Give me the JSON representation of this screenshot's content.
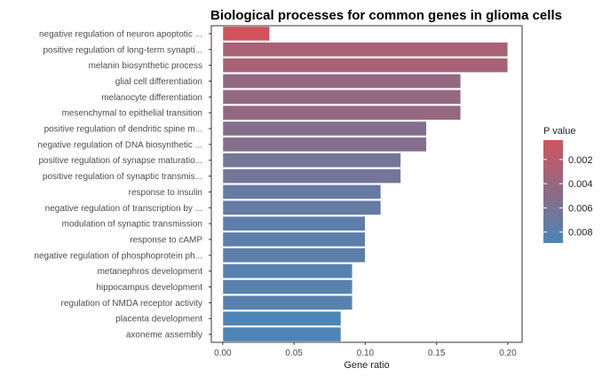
{
  "chart_data": {
    "type": "bar",
    "orientation": "horizontal",
    "title": "Biological processes for common genes in glioma cells",
    "xlabel": "Gene ratio",
    "ylabel": "",
    "xlim": [
      -0.008,
      0.21
    ],
    "x_ticks": [
      0.0,
      0.05,
      0.1,
      0.15,
      0.2
    ],
    "x_tick_labels": [
      "0.00",
      "0.05",
      "0.10",
      "0.15",
      "0.20"
    ],
    "grid": false,
    "categories": [
      "negative regulation of neuron apoptotic ...",
      "positive regulation of long-term synapti...",
      "melanin biosynthetic process",
      "glial cell differentiation",
      "melanocyte differentiation",
      "mesenchymal to epithelial transition",
      "positive regulation of dendritic spine m...",
      "negative regulation of DNA biosynthetic ...",
      "positive regulation of synapse maturatio...",
      "positive regulation of synaptic transmis...",
      "response to insulin",
      "negative regulation of transcription by ...",
      "modulation of synaptic transmission",
      "response to cAMP",
      "negative regulation of phosphoprotein ph...",
      "metanephros development",
      "hippocampus development",
      "regulation of NMDA receptor activity",
      "placenta development",
      "axoneme assembly"
    ],
    "values": [
      0.033,
      0.2,
      0.2,
      0.167,
      0.167,
      0.167,
      0.143,
      0.143,
      0.125,
      0.125,
      0.111,
      0.111,
      0.1,
      0.1,
      0.1,
      0.091,
      0.091,
      0.091,
      0.083,
      0.083
    ],
    "p_values": [
      0.0004,
      0.003,
      0.003,
      0.0042,
      0.0042,
      0.0042,
      0.0053,
      0.0053,
      0.0063,
      0.0063,
      0.0072,
      0.0072,
      0.0077,
      0.0077,
      0.0077,
      0.0081,
      0.0081,
      0.0081,
      0.0087,
      0.0087
    ],
    "legend": {
      "title": "P value",
      "ticks": [
        0.002,
        0.004,
        0.006,
        0.008
      ],
      "tick_labels": [
        "0.002",
        "0.004",
        "0.006",
        "0.008"
      ],
      "range": [
        0.0004,
        0.0089
      ],
      "color_low": "#d1545c",
      "color_high": "#4a86b8",
      "placement": "right"
    },
    "colors": {
      "panel_border": "#333333",
      "bar_outline": "#ffffff"
    }
  }
}
